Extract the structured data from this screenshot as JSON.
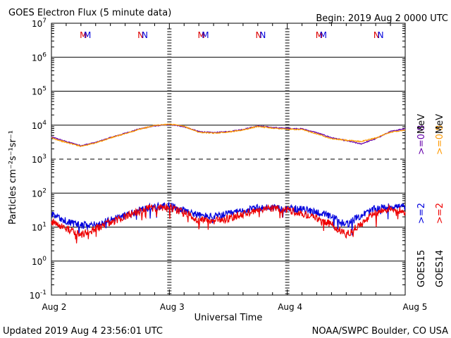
{
  "header": {
    "title": "GOES Electron Flux (5 minute data)",
    "begin": "Begin: 2019 Aug 2 0000 UTC"
  },
  "footer": {
    "updated": "Updated 2019 Aug  4 23:56:01 UTC",
    "source": "NOAA/SWPC Boulder, CO USA"
  },
  "chart_data": {
    "type": "line",
    "title": "GOES Electron Flux (5 minute data)",
    "xlabel": "Universal Time",
    "ylabel": "Particles cm⁻²s⁻¹sr⁻¹",
    "yscale": "log",
    "ylim": [
      0.1,
      10000000
    ],
    "xlim": [
      "2019-08-02 00:00",
      "2019-08-05 00:00"
    ],
    "x_tick_labels": [
      "Aug 2",
      "Aug 3",
      "Aug 4",
      "Aug 5"
    ],
    "y_tick_labels": [
      {
        "base": "10",
        "exp": "7"
      },
      {
        "base": "10",
        "exp": "6"
      },
      {
        "base": "10",
        "exp": "5"
      },
      {
        "base": "10",
        "exp": "4"
      },
      {
        "base": "10",
        "exp": "3"
      },
      {
        "base": "10",
        "exp": "2"
      },
      {
        "base": "10",
        "exp": "1"
      },
      {
        "base": "10",
        "exp": "0"
      },
      {
        "base": "10",
        "exp": "-1"
      }
    ],
    "threshold_level": 1000,
    "grid": true,
    "legend_placement": "right",
    "annotations": [
      {
        "text": "M",
        "time": "2019-08-02 06:30",
        "color": "#dd0000"
      },
      {
        "text": "M",
        "time": "2019-08-02 07:20",
        "color": "#0000dd"
      },
      {
        "text": "N",
        "time": "2019-08-02 18:10",
        "color": "#dd0000"
      },
      {
        "text": "N",
        "time": "2019-08-02 19:00",
        "color": "#0000dd"
      },
      {
        "text": "M",
        "time": "2019-08-03 06:30",
        "color": "#dd0000"
      },
      {
        "text": "M",
        "time": "2019-08-03 07:20",
        "color": "#0000dd"
      },
      {
        "text": "N",
        "time": "2019-08-03 18:10",
        "color": "#dd0000"
      },
      {
        "text": "N",
        "time": "2019-08-03 19:00",
        "color": "#0000dd"
      },
      {
        "text": "M",
        "time": "2019-08-04 06:30",
        "color": "#dd0000"
      },
      {
        "text": "M",
        "time": "2019-08-04 07:20",
        "color": "#0000dd"
      },
      {
        "text": "N",
        "time": "2019-08-04 18:10",
        "color": "#dd0000"
      },
      {
        "text": "N",
        "time": "2019-08-04 19:00",
        "color": "#0000dd"
      }
    ],
    "legend": [
      {
        "satellite": "GOES15",
        "energy": ">=2",
        "energy_08": ">=0.8",
        "unit": "MeV",
        "color_2": "#0000dd",
        "color_08": "#6600aa"
      },
      {
        "satellite": "GOES14",
        "energy": ">=2",
        "energy_08": ">=0.8",
        "unit": "MeV",
        "color_2": "#ee0000",
        "color_08": "#ff9900"
      }
    ],
    "series": [
      {
        "legend_entry": "GOES15 >=0.8 MeV",
        "color": "#6600aa",
        "x": [
          "2019-08-02 00:00",
          "2019-08-02 03:00",
          "2019-08-02 06:00",
          "2019-08-02 09:00",
          "2019-08-02 12:00",
          "2019-08-02 15:00",
          "2019-08-02 18:00",
          "2019-08-02 21:00",
          "2019-08-03 00:00",
          "2019-08-03 03:00",
          "2019-08-03 06:00",
          "2019-08-03 09:00",
          "2019-08-03 12:00",
          "2019-08-03 15:00",
          "2019-08-03 18:00",
          "2019-08-03 21:00",
          "2019-08-04 00:00",
          "2019-08-04 03:00",
          "2019-08-04 06:00",
          "2019-08-04 09:00",
          "2019-08-04 12:00",
          "2019-08-04 15:00",
          "2019-08-04 18:00",
          "2019-08-04 21:00",
          "2019-08-05 00:00"
        ],
        "y": [
          4500,
          3300,
          2500,
          3100,
          4300,
          5800,
          7800,
          9500,
          10500,
          9000,
          6500,
          6000,
          6500,
          7500,
          9500,
          8500,
          8000,
          7800,
          6000,
          4300,
          3500,
          2800,
          4000,
          6500,
          8000
        ]
      },
      {
        "legend_entry": "GOES14 >=0.8 MeV",
        "color": "#ff9900",
        "x": [
          "2019-08-02 00:00",
          "2019-08-02 03:00",
          "2019-08-02 06:00",
          "2019-08-02 09:00",
          "2019-08-02 12:00",
          "2019-08-02 15:00",
          "2019-08-02 18:00",
          "2019-08-02 21:00",
          "2019-08-03 00:00",
          "2019-08-03 03:00",
          "2019-08-03 06:00",
          "2019-08-03 09:00",
          "2019-08-03 12:00",
          "2019-08-03 15:00",
          "2019-08-03 18:00",
          "2019-08-03 21:00",
          "2019-08-04 00:00",
          "2019-08-04 03:00",
          "2019-08-04 06:00",
          "2019-08-04 09:00",
          "2019-08-04 12:00",
          "2019-08-04 15:00",
          "2019-08-04 18:00",
          "2019-08-04 21:00",
          "2019-08-05 00:00"
        ],
        "y": [
          4200,
          3100,
          2400,
          3000,
          4200,
          5600,
          7600,
          9800,
          10800,
          9200,
          6200,
          5800,
          6300,
          7200,
          9200,
          8200,
          7600,
          7400,
          5600,
          4000,
          3600,
          3300,
          4200,
          6200,
          7200
        ]
      },
      {
        "legend_entry": "GOES15 >=2 MeV",
        "color": "#0000dd",
        "x": [
          "2019-08-02 00:00",
          "2019-08-02 03:00",
          "2019-08-02 06:00",
          "2019-08-02 09:00",
          "2019-08-02 12:00",
          "2019-08-02 15:00",
          "2019-08-02 18:00",
          "2019-08-02 21:00",
          "2019-08-03 00:00",
          "2019-08-03 03:00",
          "2019-08-03 06:00",
          "2019-08-03 09:00",
          "2019-08-03 12:00",
          "2019-08-03 15:00",
          "2019-08-03 18:00",
          "2019-08-03 21:00",
          "2019-08-04 00:00",
          "2019-08-04 03:00",
          "2019-08-04 06:00",
          "2019-08-04 09:00",
          "2019-08-04 12:00",
          "2019-08-04 15:00",
          "2019-08-04 18:00",
          "2019-08-04 21:00",
          "2019-08-05 00:00"
        ],
        "y": [
          25,
          15,
          11,
          12,
          16,
          22,
          32,
          40,
          42,
          32,
          22,
          20,
          24,
          30,
          36,
          38,
          36,
          33,
          28,
          20,
          12,
          22,
          35,
          40,
          40
        ]
      },
      {
        "legend_entry": "GOES14 >=2 MeV",
        "color": "#ee0000",
        "x": [
          "2019-08-02 00:00",
          "2019-08-02 03:00",
          "2019-08-02 06:00",
          "2019-08-02 09:00",
          "2019-08-02 12:00",
          "2019-08-02 15:00",
          "2019-08-02 18:00",
          "2019-08-02 21:00",
          "2019-08-03 00:00",
          "2019-08-03 03:00",
          "2019-08-03 06:00",
          "2019-08-03 09:00",
          "2019-08-03 12:00",
          "2019-08-03 15:00",
          "2019-08-03 18:00",
          "2019-08-03 21:00",
          "2019-08-04 00:00",
          "2019-08-04 03:00",
          "2019-08-04 06:00",
          "2019-08-04 09:00",
          "2019-08-04 12:00",
          "2019-08-04 15:00",
          "2019-08-04 18:00",
          "2019-08-04 21:00",
          "2019-08-05 00:00"
        ],
        "y": [
          15,
          9,
          6,
          9,
          14,
          20,
          30,
          38,
          38,
          26,
          16,
          15,
          18,
          24,
          30,
          36,
          32,
          26,
          18,
          12,
          6,
          12,
          26,
          36,
          28
        ]
      }
    ]
  }
}
